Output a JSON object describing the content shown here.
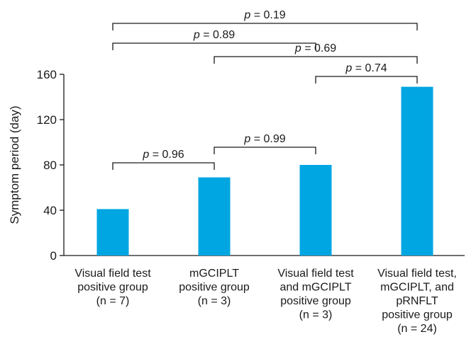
{
  "chart_data": {
    "type": "bar",
    "title": "",
    "xlabel": "",
    "ylabel": "Symptom period (day)",
    "ylim": [
      0,
      160
    ],
    "yticks": [
      0,
      40,
      80,
      120,
      160
    ],
    "grid": false,
    "bar_color": "#00a6e2",
    "categories": [
      [
        "Visual field test",
        "positive group",
        "(n = 7)"
      ],
      [
        "mGCIPLT",
        "positive group",
        "(n = 3)"
      ],
      [
        "Visual field test",
        "and mGCIPLT",
        "positive group",
        "(n = 3)"
      ],
      [
        "Visual field test,",
        "mGCIPLT, and",
        "pRNFLT",
        "positive group",
        "(n = 24)"
      ]
    ],
    "values": [
      41,
      69,
      80,
      149
    ],
    "comparisons": [
      {
        "from": 0,
        "to": 1,
        "label_prefix": "p",
        "label_value": " = 0.96",
        "level": 0
      },
      {
        "from": 1,
        "to": 2,
        "label_prefix": "p",
        "label_value": " = 0.99",
        "level": 1
      },
      {
        "from": 2,
        "to": 3,
        "label_prefix": "p",
        "label_value": " = 0.74",
        "level": 2
      },
      {
        "from": 1,
        "to": 3,
        "label_prefix": "p",
        "label_value": " = 0.69",
        "level": 3
      },
      {
        "from": 0,
        "to": 2,
        "label_prefix": "p",
        "label_value": " = 0.89",
        "level": 4
      },
      {
        "from": 0,
        "to": 3,
        "label_prefix": "p",
        "label_value": " = 0.19",
        "level": 5
      }
    ]
  }
}
